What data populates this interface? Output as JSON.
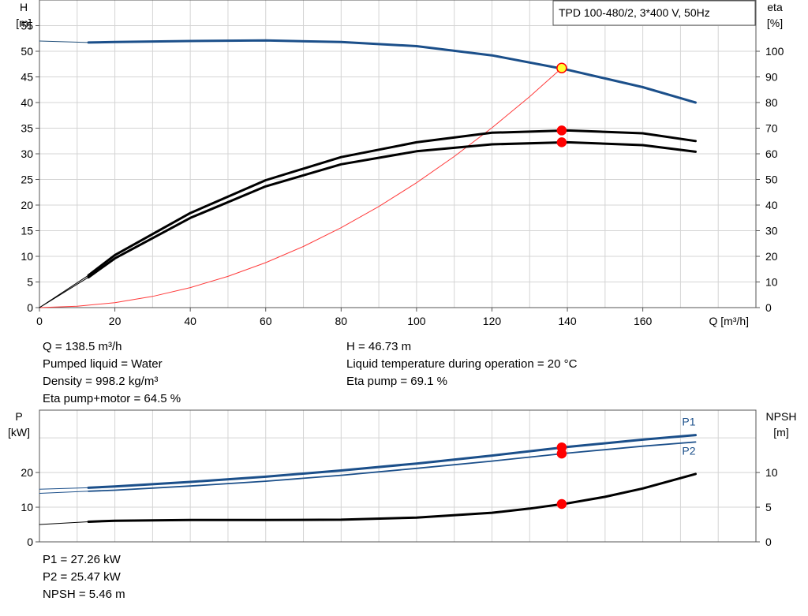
{
  "chart_data": [
    {
      "type": "line",
      "title": "TPD 100-480/2, 3*400 V, 50Hz",
      "xlabel": "Q [m³/h]",
      "ylabel_left_1": "H",
      "ylabel_left_2": "[m]",
      "ylabel_right_1": "eta",
      "ylabel_right_2": "[%]",
      "xlim": [
        0,
        190
      ],
      "ylim_left": [
        0,
        60
      ],
      "ylim_right": [
        0,
        120
      ],
      "x_ticks": [
        0,
        20,
        40,
        60,
        80,
        100,
        120,
        140,
        160
      ],
      "y_left_ticks": [
        0,
        5,
        10,
        15,
        20,
        25,
        30,
        35,
        40,
        45,
        50,
        55
      ],
      "y_right_ticks": [
        0,
        10,
        20,
        30,
        40,
        50,
        60,
        70,
        80,
        90,
        100
      ],
      "grid": true,
      "series": [
        {
          "id": "H-extension",
          "axis": "left",
          "color": "#1f4e79",
          "thin": true,
          "x": [
            0,
            13
          ],
          "y": [
            52.0,
            51.7
          ]
        },
        {
          "id": "H",
          "axis": "left",
          "color": "#1b4f8a",
          "x": [
            13,
            20,
            40,
            60,
            80,
            100,
            120,
            140,
            160,
            174
          ],
          "y": [
            51.7,
            51.8,
            52.0,
            52.1,
            51.8,
            51.0,
            49.2,
            46.4,
            43.0,
            40.0
          ]
        },
        {
          "id": "system-curve",
          "axis": "left",
          "color": "#ff3b3b",
          "thin": true,
          "x": [
            0,
            10,
            20,
            30,
            40,
            50,
            60,
            70,
            80,
            90,
            100,
            110,
            120,
            130,
            138.5
          ],
          "y": [
            0,
            0.26,
            0.97,
            2.19,
            3.9,
            6.09,
            8.77,
            11.93,
            15.58,
            19.72,
            24.35,
            29.47,
            35.07,
            41.16,
            46.73
          ]
        },
        {
          "id": "eta-pump-extension",
          "axis": "right",
          "color": "#000000",
          "thin": true,
          "x": [
            0,
            13
          ],
          "y": [
            0,
            12.6
          ]
        },
        {
          "id": "eta-pump",
          "axis": "right",
          "color": "#000000",
          "x": [
            13,
            20,
            40,
            60,
            80,
            100,
            120,
            140,
            160,
            174
          ],
          "y": [
            12.6,
            20.5,
            36.9,
            49.7,
            58.7,
            64.5,
            68.2,
            69.1,
            68.0,
            65.0
          ]
        },
        {
          "id": "eta-total-extension",
          "axis": "right",
          "color": "#000000",
          "thin": true,
          "x": [
            0,
            13
          ],
          "y": [
            0,
            11.8
          ]
        },
        {
          "id": "eta-total",
          "axis": "right",
          "color": "#000000",
          "x": [
            13,
            20,
            40,
            60,
            80,
            100,
            120,
            140,
            160,
            174
          ],
          "y": [
            11.8,
            19.2,
            35.0,
            47.3,
            55.9,
            61.0,
            63.7,
            64.5,
            63.4,
            60.8
          ]
        }
      ],
      "markers": [
        {
          "id": "duty-point",
          "axis": "left",
          "x": 138.5,
          "y": 46.73,
          "fill": "#ffff33",
          "stroke": "#ff0000"
        },
        {
          "id": "eta-pump-point",
          "axis": "right",
          "x": 138.5,
          "y": 69.1,
          "fill": "#ff0000",
          "stroke": "#ff0000"
        },
        {
          "id": "eta-total-point",
          "axis": "right",
          "x": 138.5,
          "y": 64.5,
          "fill": "#ff0000",
          "stroke": "#ff0000"
        }
      ]
    },
    {
      "type": "line",
      "ylabel_left_1": "P",
      "ylabel_left_2": "[kW]",
      "ylabel_right_1": "NPSH",
      "ylabel_right_2": "[m]",
      "xlim": [
        0,
        190
      ],
      "ylim_left": [
        0,
        38
      ],
      "ylim_right": [
        0,
        19
      ],
      "y_left_ticks": [
        0,
        10,
        20
      ],
      "y_right_ticks": [
        0,
        5,
        10
      ],
      "grid": true,
      "series": [
        {
          "id": "P1-extension",
          "axis": "left",
          "color": "#1b4f8a",
          "thin": true,
          "x": [
            0,
            13
          ],
          "y": [
            15.2,
            15.6
          ]
        },
        {
          "id": "P1",
          "axis": "left",
          "color": "#1b4f8a",
          "name": "P1",
          "x": [
            13,
            20,
            40,
            60,
            80,
            100,
            120,
            140,
            160,
            174
          ],
          "y": [
            15.6,
            16.0,
            17.3,
            18.8,
            20.6,
            22.6,
            24.9,
            27.4,
            29.5,
            30.8
          ]
        },
        {
          "id": "P2-extension",
          "axis": "left",
          "color": "#1b4f8a",
          "thin": true,
          "x": [
            0,
            13
          ],
          "y": [
            14.0,
            14.6
          ]
        },
        {
          "id": "P2",
          "axis": "left",
          "color": "#1b4f8a",
          "name": "P2",
          "thin": true,
          "x": [
            13,
            20,
            40,
            60,
            80,
            100,
            120,
            140,
            160,
            174
          ],
          "y": [
            14.6,
            14.9,
            16.1,
            17.5,
            19.2,
            21.2,
            23.3,
            25.6,
            27.6,
            28.8
          ]
        },
        {
          "id": "NPSH-extension",
          "axis": "right",
          "color": "#000000",
          "thin": true,
          "x": [
            0,
            13
          ],
          "y": [
            2.5,
            2.9
          ]
        },
        {
          "id": "NPSH",
          "axis": "right",
          "color": "#000000",
          "x": [
            13,
            20,
            40,
            60,
            80,
            100,
            120,
            130,
            140,
            150,
            160,
            174
          ],
          "y": [
            2.9,
            3.05,
            3.15,
            3.15,
            3.2,
            3.5,
            4.2,
            4.8,
            5.55,
            6.5,
            7.7,
            9.8
          ]
        }
      ],
      "markers": [
        {
          "id": "P1-point",
          "axis": "left",
          "x": 138.5,
          "y": 27.26,
          "fill": "#ff0000",
          "stroke": "#ff0000"
        },
        {
          "id": "P2-point",
          "axis": "left",
          "x": 138.5,
          "y": 25.47,
          "fill": "#ff0000",
          "stroke": "#ff0000"
        },
        {
          "id": "NPSH-point",
          "axis": "right",
          "x": 138.5,
          "y": 5.46,
          "fill": "#ff0000",
          "stroke": "#ff0000"
        }
      ]
    }
  ],
  "results": {
    "q": "Q = 138.5 m³/h",
    "liquid": "Pumped liquid = Water",
    "density": "Density = 998.2 kg/m³",
    "eta_total": "Eta pump+motor = 64.5 %",
    "h": "H = 46.73 m",
    "temperature": "Liquid temperature during operation = 20 °C",
    "eta_pump": "Eta pump = 69.1 %",
    "p1": "P1 = 27.26 kW",
    "p2": "P2 = 25.47 kW",
    "npsh": "NPSH = 5.46 m"
  }
}
